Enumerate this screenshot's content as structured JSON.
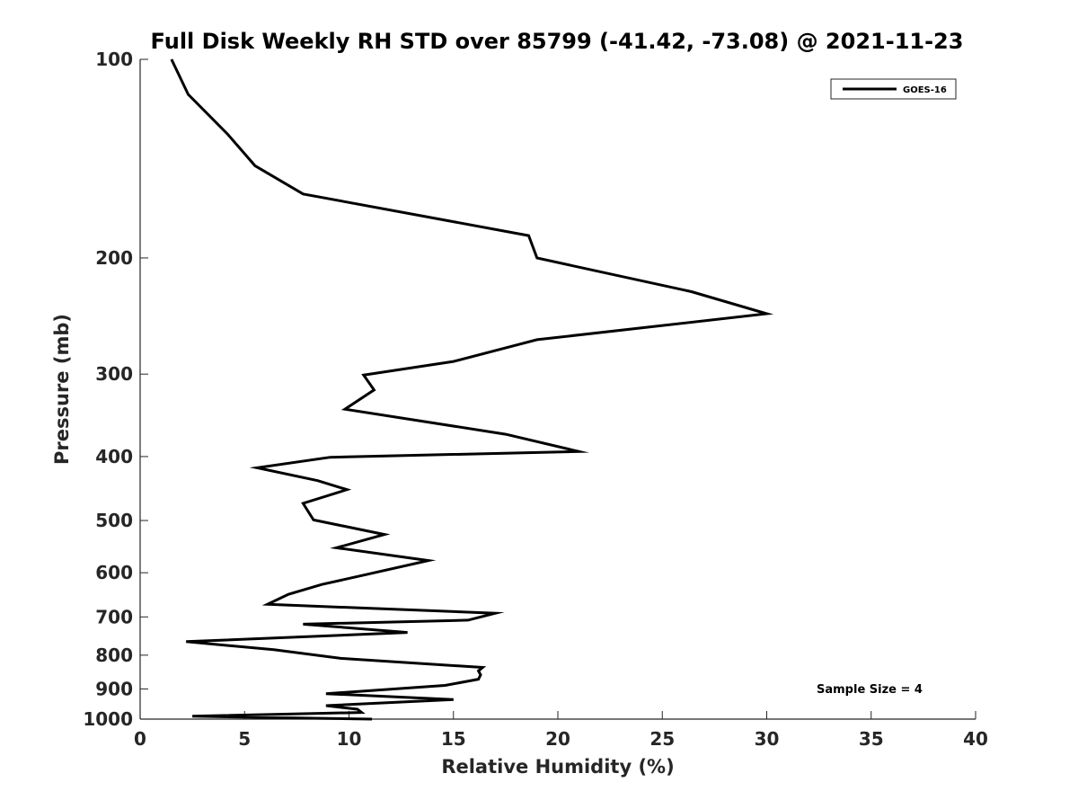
{
  "chart_data": {
    "type": "line",
    "title": "Full Disk Weekly RH STD over 85799 (-41.42, -73.08) @ 2021-11-23",
    "xlabel": "Relative Humidity (%)",
    "ylabel": "Pressure (mb)",
    "xlim": [
      0,
      40
    ],
    "ylim": [
      100,
      1000
    ],
    "y_scale": "log",
    "y_reversed": true,
    "x_ticks": [
      0,
      5,
      10,
      15,
      20,
      25,
      30,
      35,
      40
    ],
    "y_ticks": [
      100,
      200,
      300,
      400,
      500,
      600,
      700,
      800,
      900,
      1000
    ],
    "grid": false,
    "legend_position": "top-right",
    "annotation": "Sample Size = 4",
    "series": [
      {
        "name": "GOES-16",
        "color": "#000000",
        "x": [
          1.5,
          2.3,
          4.2,
          5.5,
          7.8,
          18.6,
          19.0,
          26.4,
          30.0,
          19.0,
          15.0,
          10.7,
          11.2,
          9.8,
          17.5,
          21.0,
          9.1,
          5.6,
          8.5,
          9.9,
          7.8,
          8.3,
          11.7,
          9.4,
          13.8,
          10.8,
          8.7,
          7.1,
          6.1,
          17.0,
          15.7,
          7.8,
          12.8,
          2.2,
          6.4,
          9.6,
          16.4,
          16.2,
          16.3,
          16.2,
          14.6,
          8.9,
          15.0,
          8.9,
          10.4,
          10.6,
          2.5,
          11.1
        ],
        "y": [
          100,
          113,
          130,
          145,
          160,
          185,
          200,
          225,
          243,
          266,
          287,
          301,
          317,
          339,
          370,
          393,
          401,
          416,
          435,
          449,
          471,
          499,
          525,
          550,
          575,
          604,
          625,
          647,
          670,
          691,
          708,
          718,
          739,
          763,
          785,
          809,
          835,
          845,
          857,
          870,
          889,
          915,
          934,
          954,
          966,
          977,
          990,
          1000
        ]
      }
    ]
  }
}
